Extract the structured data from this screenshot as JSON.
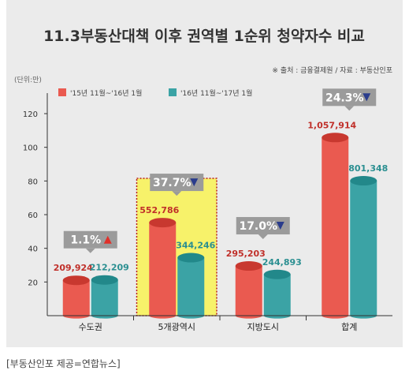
{
  "source_note": "※ 출처 : 금융결제원 / 자료 : 부동산인포",
  "caption": "[부동산인포 제공=연합뉴스]",
  "colors": {
    "red": "#ea5a50",
    "red_top": "#c8382f",
    "teal": "#3ba3a5",
    "teal_top": "#22888a",
    "highlight": "#f7f26a",
    "badge_bg": "#9b9b9b",
    "red_value_text": "#c0302a",
    "teal_value_text": "#2b8f91",
    "title_text": "#333333"
  },
  "chart_data": {
    "type": "bar",
    "title": "11.3부동산대책 이후 권역별 1순위 청약자수 비교",
    "ylabel": "(단위:만)",
    "ylim": [
      0,
      120
    ],
    "yticks": [
      20,
      40,
      60,
      80,
      100,
      120
    ],
    "grid": false,
    "legend_position": "top-left",
    "categories": [
      "수도권",
      "5개광역시",
      "지방도시",
      "합계"
    ],
    "series": [
      {
        "name": "'15년 11월~'16년 1월",
        "values": [
          20.9924,
          55.2786,
          29.5203,
          105.7914
        ],
        "labels": [
          "209,924",
          "552,786",
          "295,203",
          "1,057,914"
        ]
      },
      {
        "name": "'16년 11월~'17년 1월",
        "values": [
          21.2209,
          34.4246,
          24.4893,
          80.1348
        ],
        "labels": [
          "212,209",
          "344,246",
          "244,893",
          "801,348"
        ]
      }
    ],
    "changes": [
      {
        "label": "1.1%",
        "direction": "up"
      },
      {
        "label": "37.7%",
        "direction": "down"
      },
      {
        "label": "17.0%",
        "direction": "down"
      },
      {
        "label": "24.3%",
        "direction": "down"
      }
    ],
    "highlighted_category": "5개광역시"
  }
}
